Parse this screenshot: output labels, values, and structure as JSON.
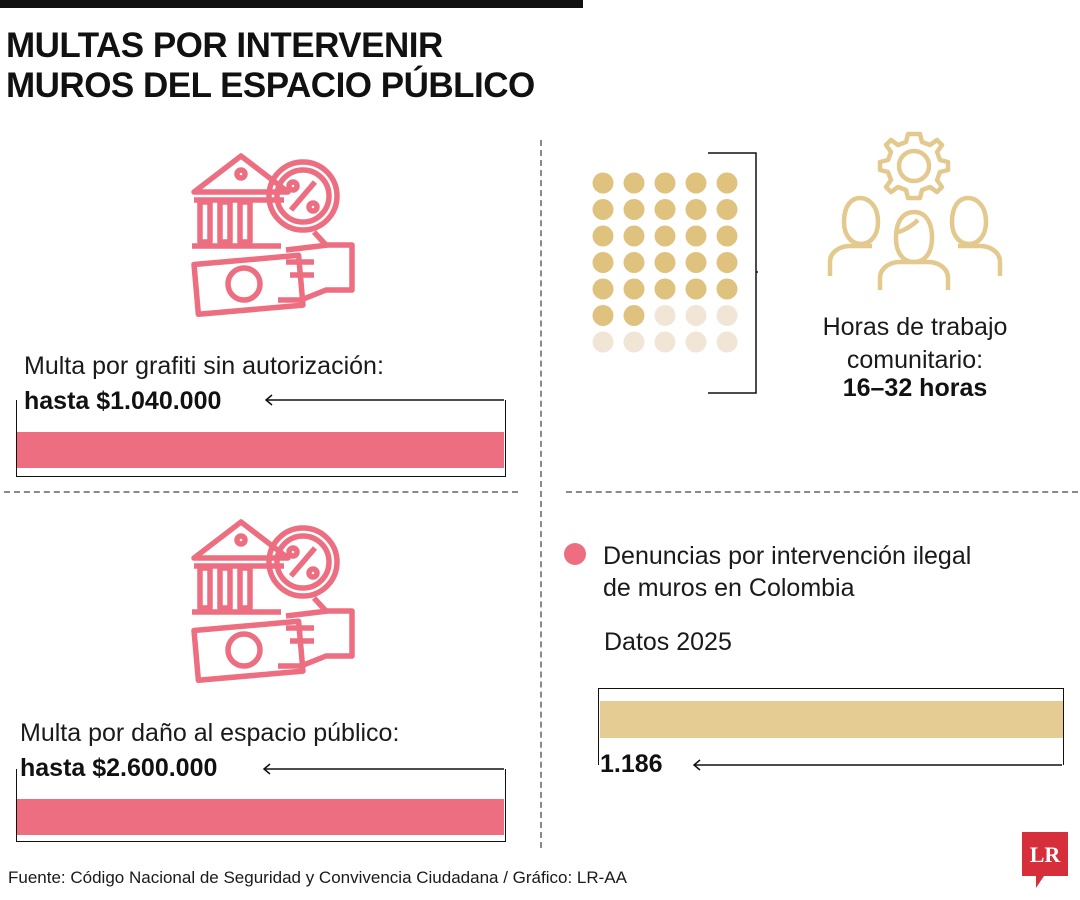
{
  "title": "MULTAS POR INTERVENIR MUROS DEL ESPACIO PÚBLICO",
  "colors": {
    "fine_bar": "#ec6e80",
    "report_bar": "#e5cc92",
    "dot_filled": "#e0c27f",
    "dot_faded": "#f1e6d6",
    "icon_pink": "#ec6e80",
    "icon_gold": "#e3c98e"
  },
  "icons": {
    "fine": "bank-percent-money-hand-icon",
    "people": "people-gear-icon"
  },
  "fines": [
    {
      "label": "Multa por grafiti sin autorización:",
      "value_text": "hasta $1.040.000",
      "value": 1040000
    },
    {
      "label": "Multa por daño al espacio público:",
      "value_text": "hasta $2.600.000",
      "value": 2600000
    }
  ],
  "community_work": {
    "label": "Horas de trabajo comunitario:",
    "value_text": "16–32 horas",
    "min_hours": 16,
    "max_hours": 32
  },
  "reports": {
    "legend": "Denuncias por intervención ilegal de muros en Colombia",
    "year_label": "Datos 2025",
    "value_text": "1.186",
    "value": 1186
  },
  "source": "Fuente: Código Nacional de Seguridad y Convivencia Ciudadana / Gráfico: LR-AA",
  "logo_text": "LR",
  "chart_data": [
    {
      "type": "bar",
      "categories": [
        "Multa por grafiti sin autorización",
        "Multa por daño al espacio público"
      ],
      "values": [
        1040000,
        2600000
      ]
    },
    {
      "type": "bar",
      "categories": [
        "Horas de trabajo comunitario"
      ],
      "series": [
        {
          "values": [
            16
          ]
        },
        {
          "values": [
            32
          ]
        }
      ]
    },
    {
      "type": "bar",
      "categories": [
        "Datos 2025"
      ],
      "values": [
        1186
      ]
    }
  ]
}
